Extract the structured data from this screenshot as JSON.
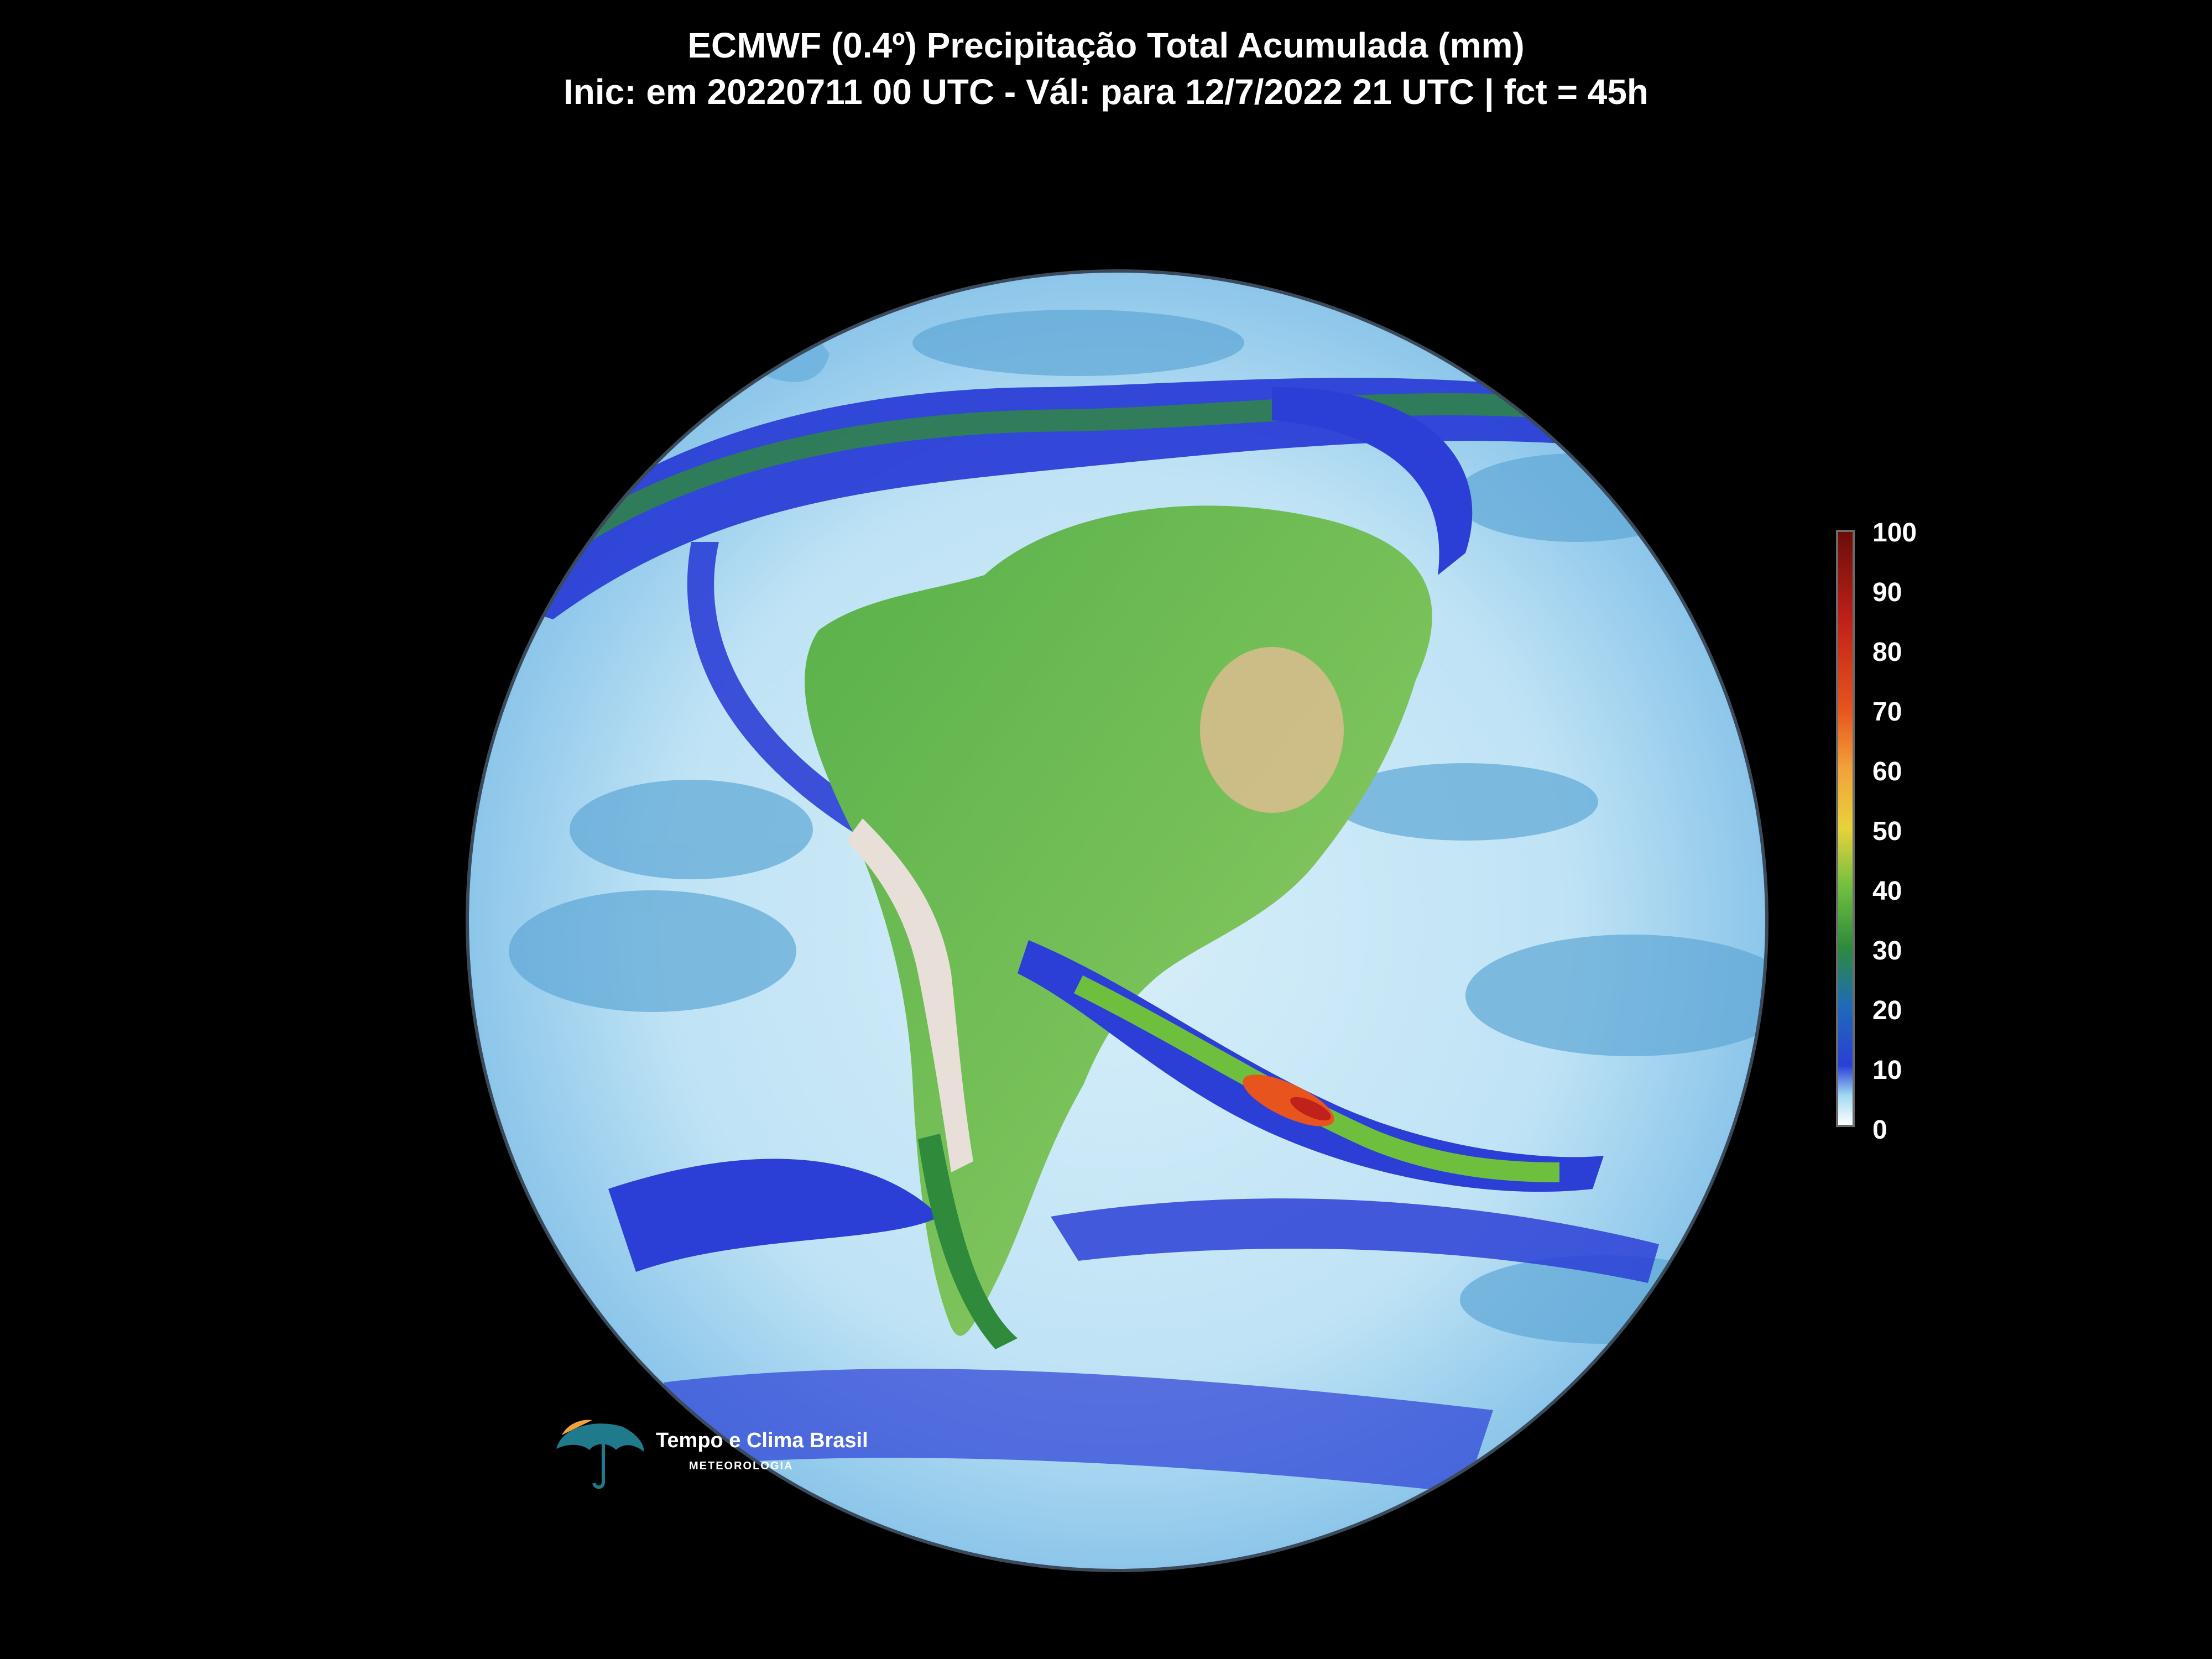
{
  "title": {
    "line1": "ECMWF (0.4º) Precipitação Total Acumulada (mm)",
    "line2": "Inic: em 20220711 00 UTC - Vál: para 12/7/2022 21 UTC | fct = 45h"
  },
  "colorbar": {
    "ticks": [
      "100",
      "90",
      "80",
      "70",
      "60",
      "50",
      "40",
      "30",
      "20",
      "10",
      "0"
    ],
    "min": 0,
    "max": 100,
    "colors": [
      "#ffffff",
      "#9fd8f0",
      "#2b3fd6",
      "#1f6ab8",
      "#2f8a3c",
      "#6fbf3f",
      "#e8d23a",
      "#f2a23a",
      "#e8541e",
      "#c0211a",
      "#6b0d0a"
    ]
  },
  "logo": {
    "name": "Tempo e Clima Brasil",
    "subtitle": "METEOROLOGIA"
  },
  "colors": {
    "background": "#000000",
    "ocean_light": "#cfe9f7",
    "ocean_mid": "#5fa8d8",
    "rain_band": "#2030d0",
    "land_green": "#5fb34a",
    "land_dry": "#d9b98a",
    "heavy_rain": "#e8461e"
  }
}
